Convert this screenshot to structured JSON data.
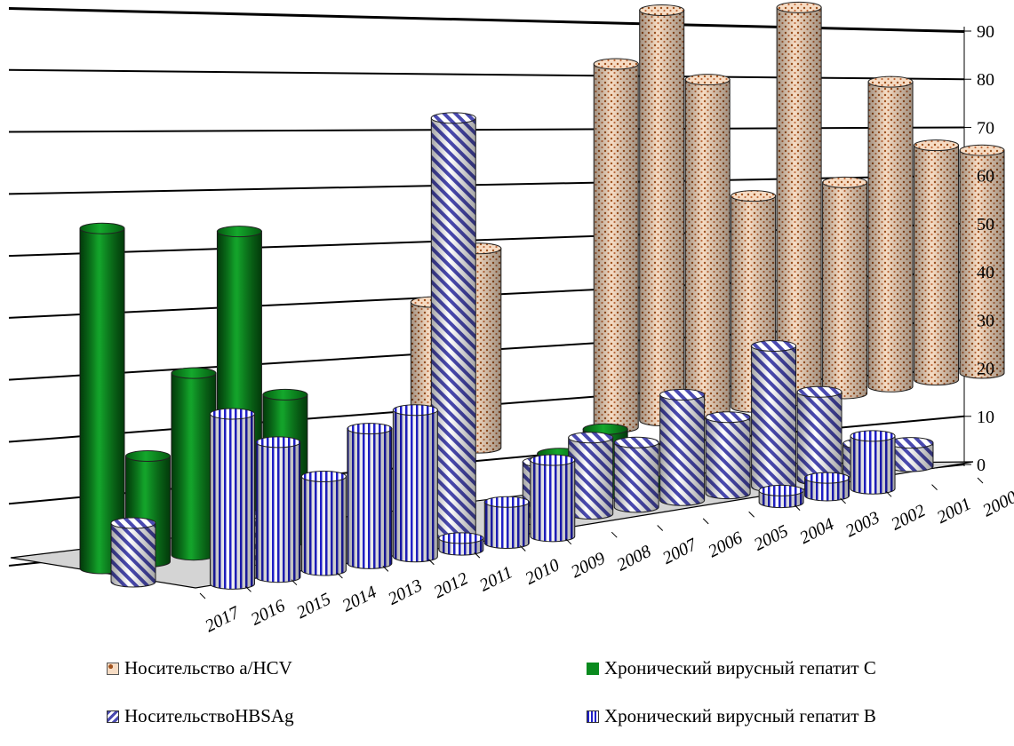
{
  "chart_data": {
    "type": "bar",
    "categories": [
      "2017",
      "2016",
      "2015",
      "2014",
      "2013",
      "2012",
      "2011",
      "2010",
      "2009",
      "2008",
      "2007",
      "2006",
      "2005",
      "2004",
      "2003",
      "2002",
      "2001",
      "2000"
    ],
    "y_ticks": [
      "0",
      "10",
      "20",
      "30",
      "40",
      "50",
      "60",
      "70",
      "80",
      "90"
    ],
    "ylim": [
      0,
      90
    ],
    "series": [
      {
        "name": "Носительство а/HCV",
        "pattern": "dotted",
        "color": "#f6dcc4",
        "accent": "#a0521e",
        "values": [
          0,
          0,
          0,
          0,
          0,
          26,
          34,
          0,
          0,
          62,
          70,
          57,
          36,
          67,
          36,
          52,
          40,
          38
        ]
      },
      {
        "name": "Хронический вирусный гепатит С",
        "pattern": "solid",
        "color": "#0a8a1e",
        "accent": "#045a10",
        "values": [
          58,
          18,
          31,
          54,
          25,
          0,
          0,
          0,
          0,
          0,
          8,
          11,
          1,
          0,
          0,
          0,
          0,
          0
        ]
      },
      {
        "name": "НосительствоHBSAg",
        "pattern": "diagonal",
        "color": "#ffffff",
        "accent": "#4a4ab0",
        "values": [
          10,
          0,
          0,
          8,
          0,
          0,
          0,
          71,
          0,
          10,
          13,
          11,
          18,
          13,
          24,
          15,
          5,
          4
        ]
      },
      {
        "name": "Хронический вирусный гепатит B",
        "pattern": "vertical",
        "color": "#ffffff",
        "accent": "#2020c8",
        "values": [
          0,
          29,
          23,
          16,
          23,
          25,
          2,
          7,
          13,
          0,
          0,
          0,
          0,
          2,
          3,
          9,
          0,
          0
        ]
      }
    ],
    "grid": true,
    "legend_position": "bottom"
  },
  "legend": {
    "items": [
      {
        "label": "Носительство а/HCV"
      },
      {
        "label": "Хронический вирусный гепатит С"
      },
      {
        "label": "НосительствоHBSAg"
      },
      {
        "label": "Хронический вирусный гепатит B"
      }
    ]
  }
}
